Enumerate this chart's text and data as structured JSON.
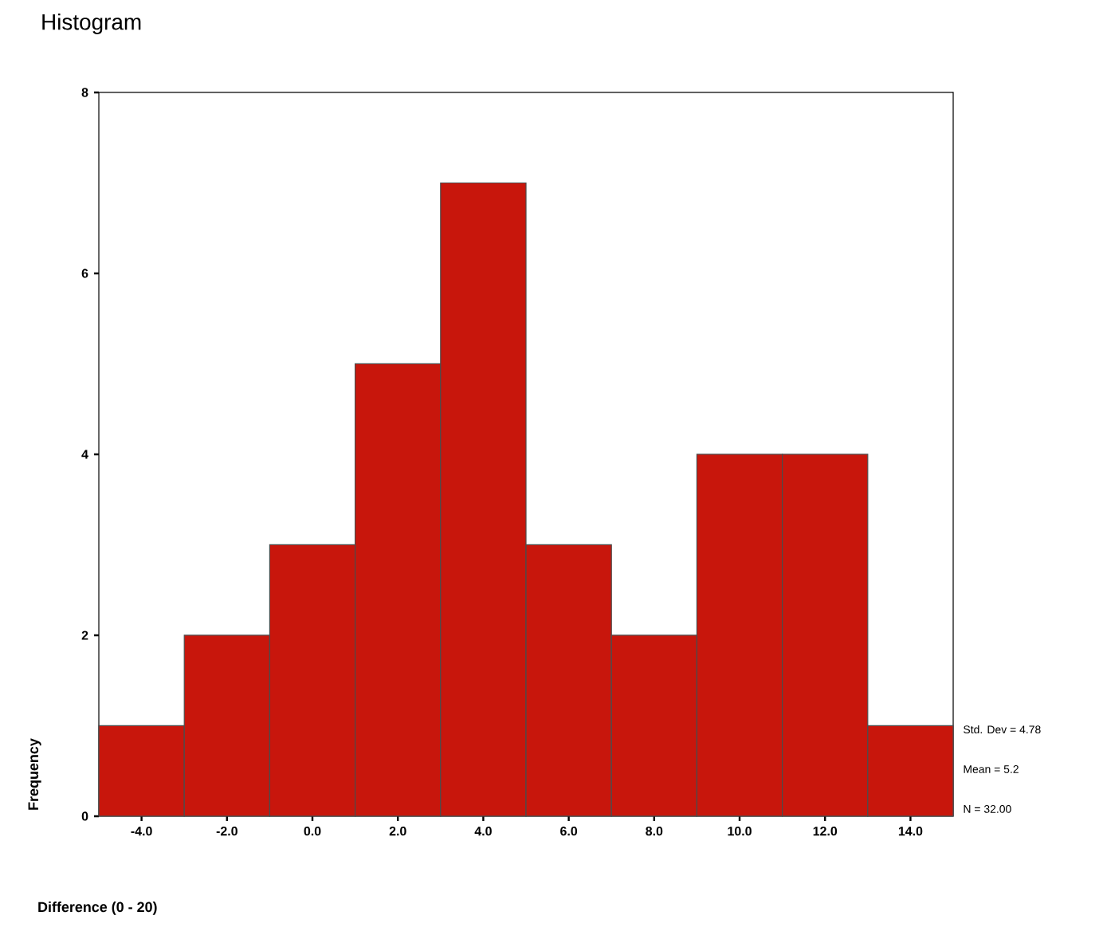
{
  "chart_data": {
    "type": "histogram",
    "title": "Histogram",
    "xlabel": "Difference (0 - 20)",
    "ylabel": "Frequency",
    "bins": [
      -5,
      -3,
      -1,
      1,
      3,
      5,
      7,
      9,
      11,
      13,
      15
    ],
    "values": [
      1,
      2,
      3,
      5,
      7,
      3,
      2,
      4,
      4,
      1
    ],
    "color": "#c8160c",
    "xlim": [
      -5,
      15
    ],
    "xticks": [
      {
        "value": -4,
        "label": "-4.0"
      },
      {
        "value": -2,
        "label": "-2.0"
      },
      {
        "value": 0,
        "label": "0.0"
      },
      {
        "value": 2,
        "label": "2.0"
      },
      {
        "value": 4,
        "label": "4.0"
      },
      {
        "value": 6,
        "label": "6.0"
      },
      {
        "value": 8,
        "label": "8.0"
      },
      {
        "value": 10,
        "label": "10.0"
      },
      {
        "value": 12,
        "label": "12.0"
      },
      {
        "value": 14,
        "label": "14.0"
      }
    ],
    "ylim": [
      0,
      8
    ],
    "yticks": [
      0,
      2,
      4,
      6,
      8
    ],
    "annotations": [
      "Std. Dev = 4.78",
      "Mean = 5.2",
      "N = 32.00"
    ],
    "grid": false
  }
}
